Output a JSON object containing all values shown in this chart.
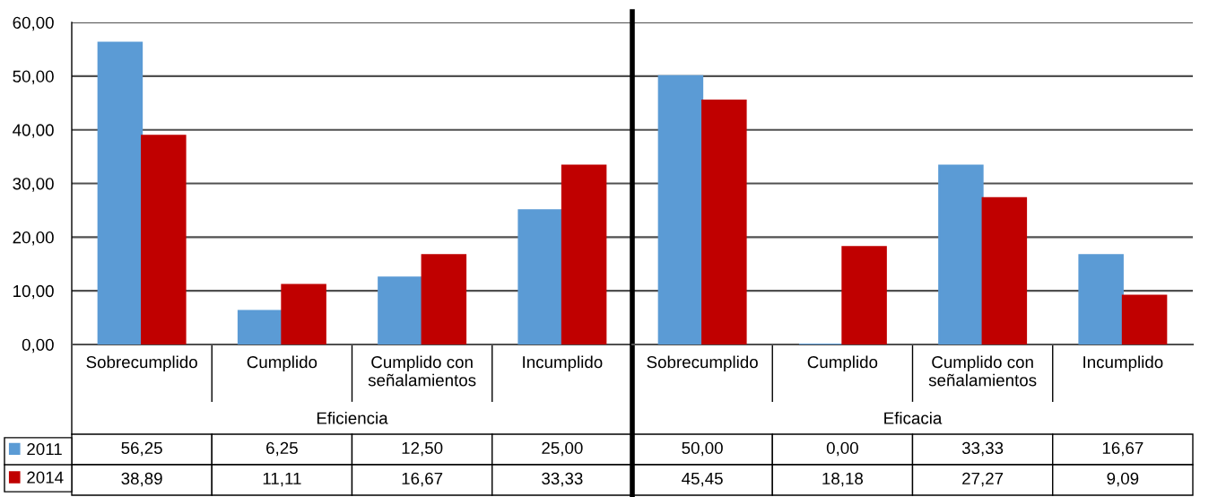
{
  "chart_data": [
    {
      "type": "bar",
      "categories": [
        "Sobrecumplido",
        "Cumplido",
        "Cumplido con\nseñalamientos",
        "Incumplido"
      ],
      "xlabel": "Eficiencia",
      "series": [
        {
          "name": "2011",
          "color": "#5b9bd5",
          "values": [
            56.25,
            6.25,
            12.5,
            25.0
          ],
          "value_labels": [
            "56,25",
            "6,25",
            "12,50",
            "25,00"
          ]
        },
        {
          "name": "2014",
          "color": "#c00000",
          "values": [
            38.89,
            11.11,
            16.67,
            33.33
          ],
          "value_labels": [
            "38,89",
            "11,11",
            "16,67",
            "33,33"
          ]
        }
      ],
      "ylim": [
        0,
        60
      ],
      "yticks": [
        {
          "value": 0,
          "label": "0,00"
        },
        {
          "value": 10,
          "label": "10,00"
        },
        {
          "value": 20,
          "label": "20,00"
        },
        {
          "value": 30,
          "label": "30,00"
        },
        {
          "value": 40,
          "label": "40,00"
        },
        {
          "value": 50,
          "label": "50,00"
        },
        {
          "value": 60,
          "label": "60,00"
        }
      ],
      "grid": "y",
      "legend": "bottom left"
    },
    {
      "type": "bar",
      "categories": [
        "Sobrecumplido",
        "Cumplido",
        "Cumplido con\nseñalamientos",
        "Incumplido"
      ],
      "xlabel": "Eficacia",
      "series": [
        {
          "color": "#5b9bd5",
          "values": [
            50.0,
            0.0,
            33.33,
            16.67
          ],
          "value_labels": [
            "50,00",
            "0,00",
            "33,33",
            "16,67"
          ]
        },
        {
          "color": "#c00000",
          "values": [
            45.45,
            18.18,
            27.27,
            9.09
          ],
          "value_labels": [
            "45,45",
            "18,18",
            "27,27",
            "9,09"
          ]
        }
      ],
      "ylim": [
        0,
        60
      ],
      "yticks": [
        0,
        10,
        20,
        30,
        40,
        50,
        60
      ],
      "grid": "y",
      "tick_labels": "x"
    }
  ]
}
